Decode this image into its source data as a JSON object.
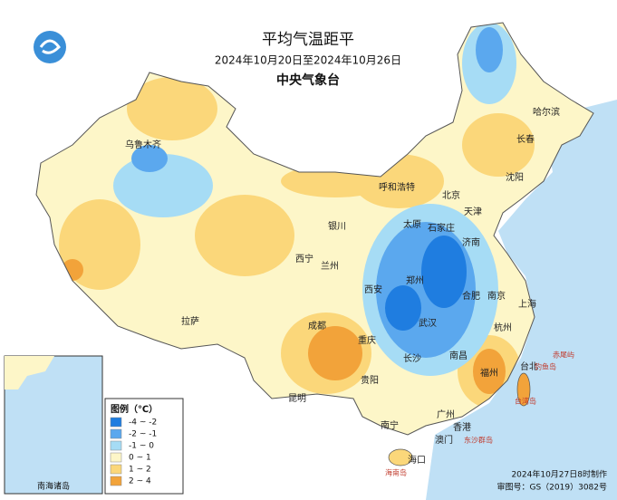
{
  "header": {
    "title": "平均气温距平",
    "subtitle": "2024年10月20日至2024年10月26日",
    "agency": "中央气象台"
  },
  "legend": {
    "title": "图例（℃）",
    "items": [
      {
        "label": "-4 ~ -2",
        "color": "#1f7de0"
      },
      {
        "label": "-2 ~ -1",
        "color": "#5ba8ee"
      },
      {
        "label": "-1 ~ 0",
        "color": "#a6dcf5"
      },
      {
        "label": "0 ~ 1",
        "color": "#fdf6c8"
      },
      {
        "label": "1 ~ 2",
        "color": "#fbd77a"
      },
      {
        "label": "2 ~ 4",
        "color": "#f2a33a"
      }
    ]
  },
  "cities": [
    "乌鲁木齐",
    "哈尔滨",
    "长春",
    "沈阳",
    "呼和浩特",
    "北京",
    "天津",
    "银川",
    "太原",
    "石家庄",
    "济南",
    "西宁",
    "兰州",
    "郑州",
    "西安",
    "合肥",
    "南京",
    "上海",
    "成都",
    "武汉",
    "杭州",
    "拉萨",
    "重庆",
    "长沙",
    "南昌",
    "福州",
    "台北",
    "贵阳",
    "昆明",
    "南宁",
    "广州",
    "香港",
    "澳门",
    "海口"
  ],
  "islands": [
    "赤尾屿",
    "钓鱼岛",
    "台湾岛",
    "东沙群岛",
    "海南岛"
  ],
  "inset": {
    "label": "南海诸岛"
  },
  "footer": {
    "made": "2024年10月27日8时制作",
    "approval": "审图号：GS（2019）3082号"
  }
}
